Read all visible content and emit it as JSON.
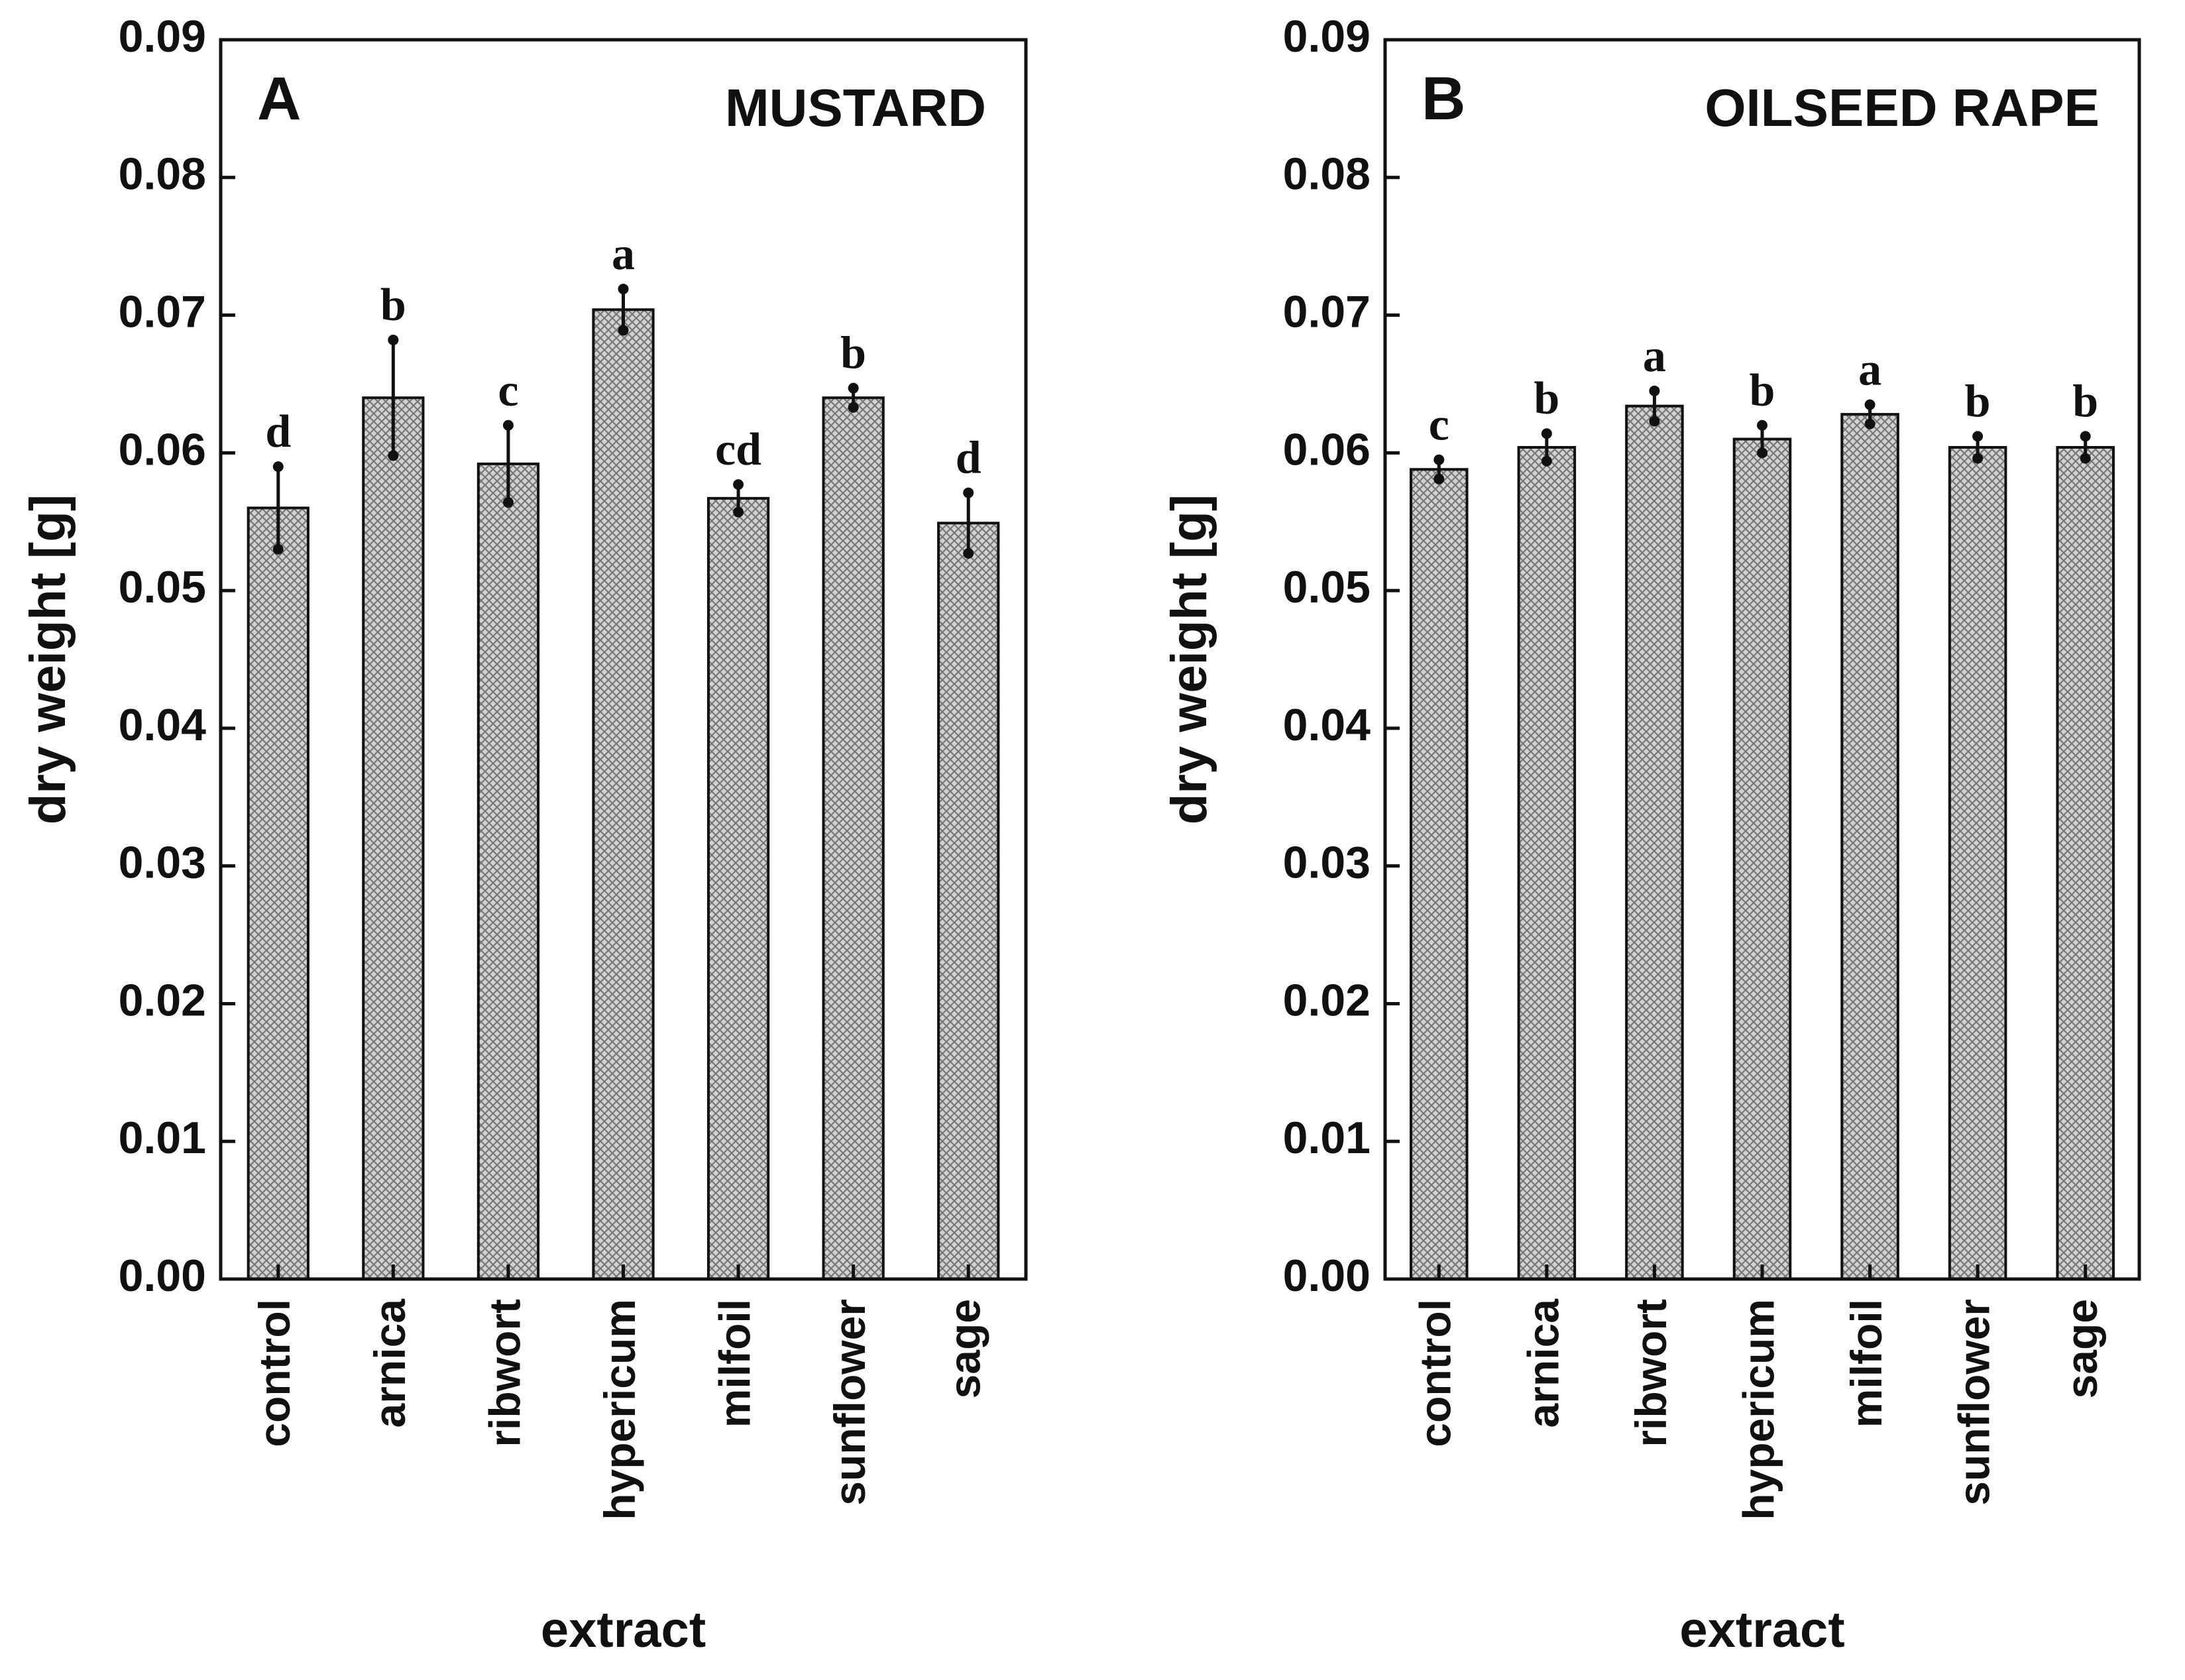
{
  "chart_data": [
    {
      "type": "bar",
      "panel": "A",
      "title": "MUSTARD",
      "xlabel": "extract",
      "ylabel": "dry weight [g]",
      "ylim": [
        0,
        0.09
      ],
      "yticks": [
        "0.00",
        "0.01",
        "0.02",
        "0.03",
        "0.04",
        "0.05",
        "0.06",
        "0.07",
        "0.08",
        "0.09"
      ],
      "categories": [
        "control",
        "arnica",
        "ribwort",
        "hypericum",
        "milfoil",
        "sunflower",
        "sage"
      ],
      "values": [
        0.056,
        0.064,
        0.0592,
        0.0704,
        0.0567,
        0.064,
        0.0549
      ],
      "errors": [
        0.003,
        0.0042,
        0.0028,
        0.0015,
        0.001,
        0.0007,
        0.0022
      ],
      "significance": [
        "d",
        "b",
        "c",
        "a",
        "cd",
        "b",
        "d"
      ]
    },
    {
      "type": "bar",
      "panel": "B",
      "title": "OILSEED RAPE",
      "xlabel": "extract",
      "ylabel": "dry weight [g]",
      "ylim": [
        0,
        0.09
      ],
      "yticks": [
        "0.00",
        "0.01",
        "0.02",
        "0.03",
        "0.04",
        "0.05",
        "0.06",
        "0.07",
        "0.08",
        "0.09"
      ],
      "categories": [
        "control",
        "arnica",
        "ribwort",
        "hypericum",
        "milfoil",
        "sunflower",
        "sage"
      ],
      "values": [
        0.0588,
        0.0604,
        0.0634,
        0.061,
        0.0628,
        0.0604,
        0.0604
      ],
      "errors": [
        0.0007,
        0.001,
        0.0011,
        0.001,
        0.0007,
        0.0008,
        0.0008
      ],
      "significance": [
        "c",
        "b",
        "a",
        "b",
        "a",
        "b",
        "b"
      ]
    }
  ]
}
